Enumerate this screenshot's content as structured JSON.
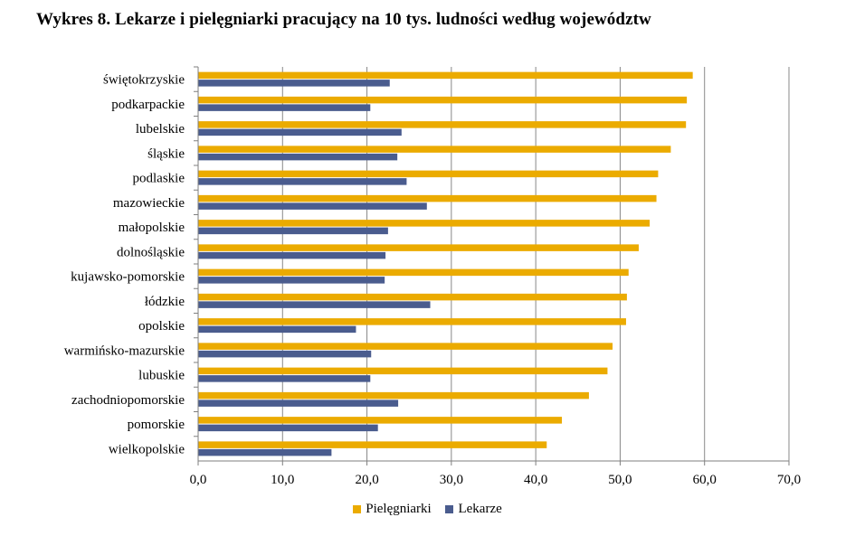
{
  "colors": {
    "pielegniarki": "#EBAB00",
    "lekarze": "#4A5C8E",
    "grid": "#888888",
    "axis": "#7f7f7f"
  },
  "chart_data": {
    "type": "bar",
    "orientation": "horizontal",
    "title": "Wykres 8. Lekarze i pielęgniarki pracujący na 10 tys. ludności według województw",
    "xlabel": "",
    "ylabel": "",
    "xlim": [
      0,
      70
    ],
    "xticks": [
      "0,0",
      "10,0",
      "20,0",
      "30,0",
      "40,0",
      "50,0",
      "60,0",
      "70,0"
    ],
    "grid": "vertical",
    "legend_position": "bottom",
    "categories": [
      "świętokrzyskie",
      "podkarpackie",
      "lubelskie",
      "śląskie",
      "podlaskie",
      "mazowieckie",
      "małopolskie",
      "dolnośląskie",
      "kujawsko-pomorskie",
      "łódzkie",
      "opolskie",
      "warmińsko-mazurskie",
      "lubuskie",
      "zachodniopomorskie",
      "pomorskie",
      "wielkopolskie"
    ],
    "series": [
      {
        "name": "Pielęgniarki",
        "values": [
          58.6,
          57.9,
          57.8,
          56.0,
          54.5,
          54.3,
          53.5,
          52.2,
          51.0,
          50.8,
          50.7,
          49.1,
          48.5,
          46.3,
          43.1,
          41.3
        ]
      },
      {
        "name": "Lekarze",
        "values": [
          22.7,
          20.4,
          24.1,
          23.6,
          24.7,
          27.1,
          22.5,
          22.2,
          22.1,
          27.5,
          18.7,
          20.5,
          20.4,
          23.7,
          21.3,
          15.8
        ]
      }
    ]
  }
}
